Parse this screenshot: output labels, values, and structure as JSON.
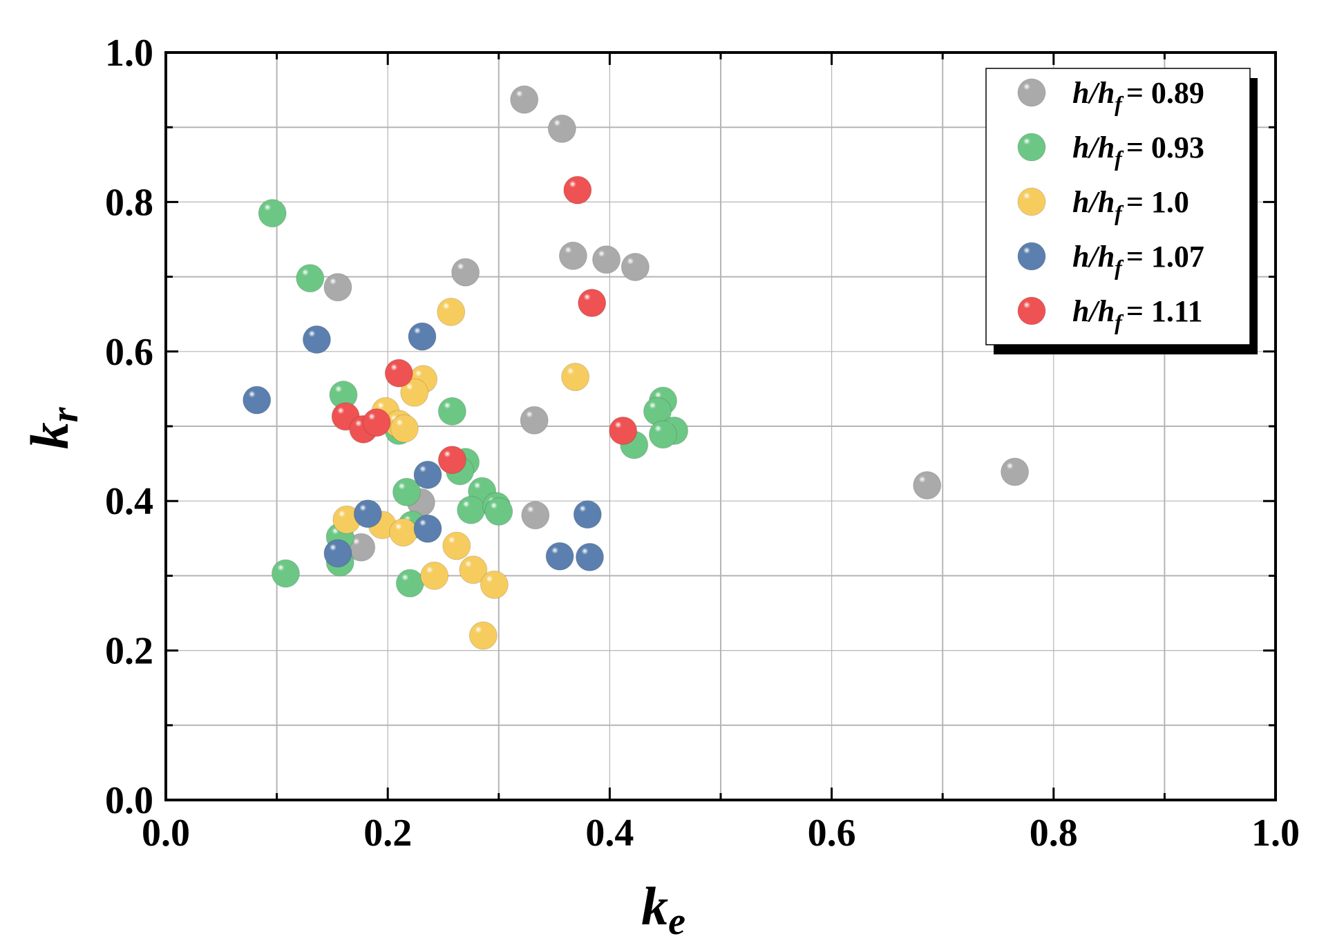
{
  "chart_data": {
    "type": "scatter",
    "title": "",
    "xlabel": {
      "base": "k",
      "sub": "e"
    },
    "ylabel": {
      "base": "k",
      "sub": "r"
    },
    "xlim": [
      0.0,
      1.0
    ],
    "ylim": [
      0.0,
      1.0
    ],
    "x_ticks": [
      "0.0",
      "0.2",
      "0.4",
      "0.6",
      "0.8",
      "1.0"
    ],
    "y_ticks": [
      "0.0",
      "0.2",
      "0.4",
      "0.6",
      "0.8",
      "1.0"
    ],
    "grid": true,
    "legend_position": "top-right",
    "series": [
      {
        "name": "h/hf = 0.89",
        "legend": {
          "h": "h/h",
          "sub": "f",
          "value": "= 0.89"
        },
        "color": "#aaaaaa",
        "points": [
          [
            0.323,
            0.937
          ],
          [
            0.357,
            0.898
          ],
          [
            0.367,
            0.728
          ],
          [
            0.397,
            0.723
          ],
          [
            0.423,
            0.713
          ],
          [
            0.27,
            0.706
          ],
          [
            0.155,
            0.686
          ],
          [
            0.332,
            0.508
          ],
          [
            0.333,
            0.381
          ],
          [
            0.23,
            0.398
          ],
          [
            0.176,
            0.338
          ],
          [
            0.686,
            0.421
          ],
          [
            0.765,
            0.439
          ]
        ]
      },
      {
        "name": "h/hf = 0.93",
        "legend": {
          "h": "h/h",
          "sub": "f",
          "value": "= 0.93"
        },
        "color": "#6cc785",
        "points": [
          [
            0.096,
            0.785
          ],
          [
            0.13,
            0.698
          ],
          [
            0.16,
            0.542
          ],
          [
            0.258,
            0.52
          ],
          [
            0.21,
            0.494
          ],
          [
            0.448,
            0.534
          ],
          [
            0.443,
            0.52
          ],
          [
            0.458,
            0.494
          ],
          [
            0.448,
            0.489
          ],
          [
            0.422,
            0.475
          ],
          [
            0.27,
            0.452
          ],
          [
            0.265,
            0.44
          ],
          [
            0.217,
            0.412
          ],
          [
            0.285,
            0.413
          ],
          [
            0.275,
            0.388
          ],
          [
            0.298,
            0.393
          ],
          [
            0.3,
            0.386
          ],
          [
            0.222,
            0.368
          ],
          [
            0.157,
            0.352
          ],
          [
            0.157,
            0.318
          ],
          [
            0.108,
            0.303
          ],
          [
            0.22,
            0.29
          ]
        ]
      },
      {
        "name": "h/hf = 1.0",
        "legend": {
          "h": "h/h",
          "sub": "f",
          "value": "= 1.0"
        },
        "color": "#f7cc5f",
        "points": [
          [
            0.257,
            0.653
          ],
          [
            0.369,
            0.566
          ],
          [
            0.232,
            0.563
          ],
          [
            0.224,
            0.545
          ],
          [
            0.198,
            0.52
          ],
          [
            0.21,
            0.503
          ],
          [
            0.215,
            0.497
          ],
          [
            0.163,
            0.375
          ],
          [
            0.195,
            0.368
          ],
          [
            0.214,
            0.358
          ],
          [
            0.262,
            0.34
          ],
          [
            0.242,
            0.3
          ],
          [
            0.277,
            0.308
          ],
          [
            0.296,
            0.288
          ],
          [
            0.286,
            0.22
          ]
        ]
      },
      {
        "name": "h/hf = 1.07",
        "legend": {
          "h": "h/h",
          "sub": "f",
          "value": "= 1.07"
        },
        "color": "#5b7fae",
        "points": [
          [
            0.136,
            0.616
          ],
          [
            0.231,
            0.62
          ],
          [
            0.082,
            0.535
          ],
          [
            0.236,
            0.435
          ],
          [
            0.182,
            0.383
          ],
          [
            0.38,
            0.382
          ],
          [
            0.236,
            0.363
          ],
          [
            0.155,
            0.33
          ],
          [
            0.355,
            0.326
          ],
          [
            0.382,
            0.325
          ]
        ]
      },
      {
        "name": "h/hf = 1.11",
        "legend": {
          "h": "h/h",
          "sub": "f",
          "value": "= 1.11"
        },
        "color": "#ee5252",
        "points": [
          [
            0.371,
            0.816
          ],
          [
            0.384,
            0.665
          ],
          [
            0.21,
            0.571
          ],
          [
            0.162,
            0.513
          ],
          [
            0.178,
            0.496
          ],
          [
            0.19,
            0.505
          ],
          [
            0.412,
            0.494
          ],
          [
            0.258,
            0.455
          ]
        ]
      }
    ]
  }
}
